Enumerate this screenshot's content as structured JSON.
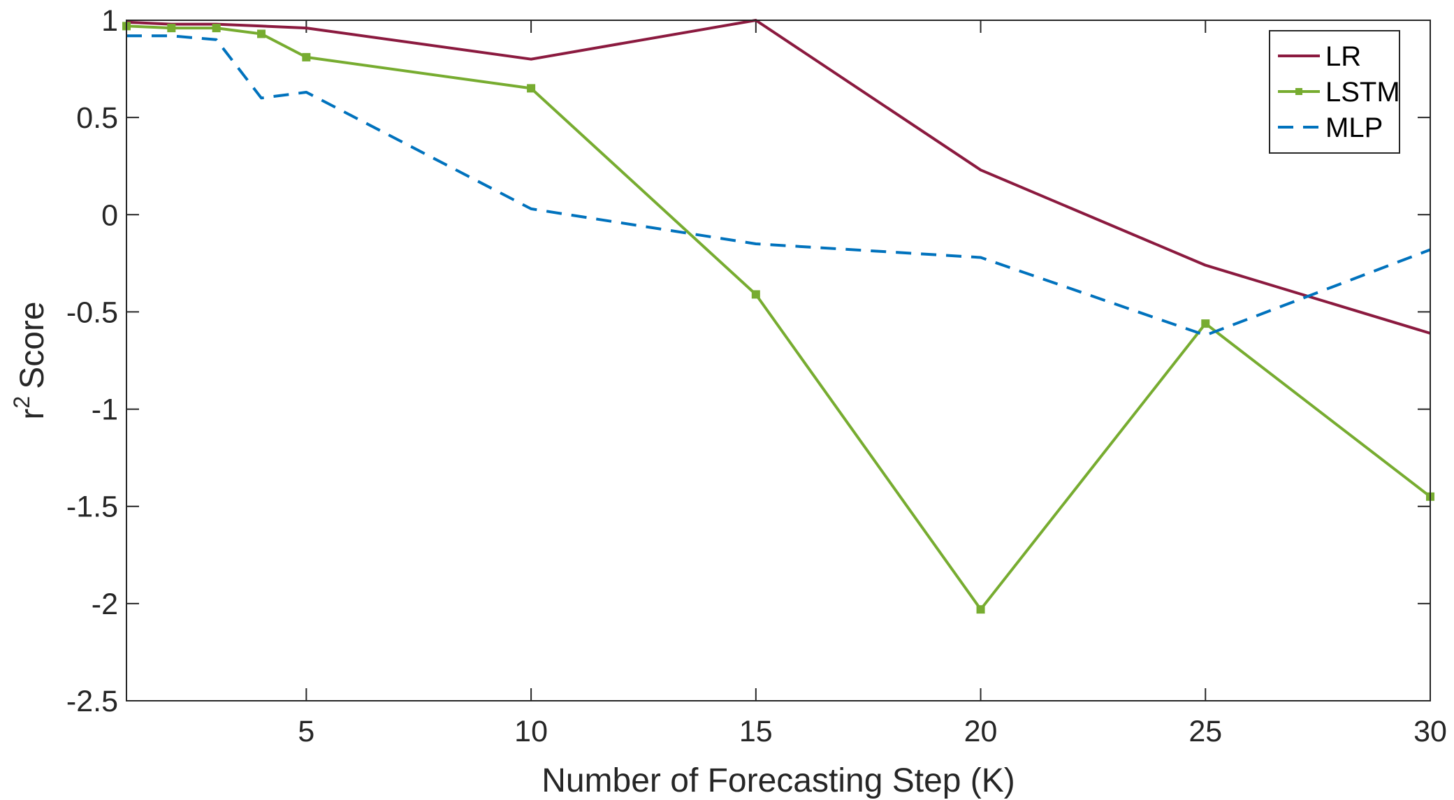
{
  "chart_data": {
    "type": "line",
    "title": "",
    "xlabel": "Number of Forecasting Step (K)",
    "ylabel": "Score",
    "ylabel_prefix": "r",
    "ylabel_superscript": "2",
    "xlim": [
      1,
      30
    ],
    "ylim": [
      -2.5,
      1
    ],
    "xticks": [
      5,
      10,
      15,
      20,
      25,
      30
    ],
    "xtick_labels": [
      "5",
      "10",
      "15",
      "20",
      "25",
      "30"
    ],
    "yticks": [
      1,
      0.5,
      0,
      -0.5,
      -1,
      -1.5,
      -2,
      -2.5
    ],
    "ytick_labels": [
      "1",
      "0.5",
      "0",
      "-0.5",
      "-1",
      "-1.5",
      "-2",
      "-2.5"
    ],
    "grid": false,
    "legend_position": "top-right",
    "series": [
      {
        "name": "LR",
        "color": "#8B1A3F",
        "style": "solid",
        "marker": "none",
        "x": [
          1,
          2,
          3,
          4,
          5,
          10,
          15,
          20,
          25,
          30
        ],
        "y": [
          0.99,
          0.98,
          0.98,
          0.97,
          0.96,
          0.8,
          1.0,
          0.23,
          -0.26,
          -0.61
        ]
      },
      {
        "name": "LSTM",
        "color": "#77AC30",
        "style": "solid",
        "marker": "square",
        "x": [
          1,
          2,
          3,
          4,
          5,
          10,
          15,
          20,
          25,
          30
        ],
        "y": [
          0.97,
          0.96,
          0.96,
          0.93,
          0.81,
          0.65,
          -0.41,
          -2.03,
          -0.56,
          -1.45
        ]
      },
      {
        "name": "MLP",
        "color": "#0072BD",
        "style": "dashed",
        "marker": "none",
        "x": [
          1,
          2,
          3,
          4,
          5,
          10,
          15,
          20,
          25,
          30
        ],
        "y": [
          0.92,
          0.92,
          0.9,
          0.6,
          0.63,
          0.03,
          -0.15,
          -0.22,
          -0.62,
          -0.18
        ]
      }
    ]
  }
}
